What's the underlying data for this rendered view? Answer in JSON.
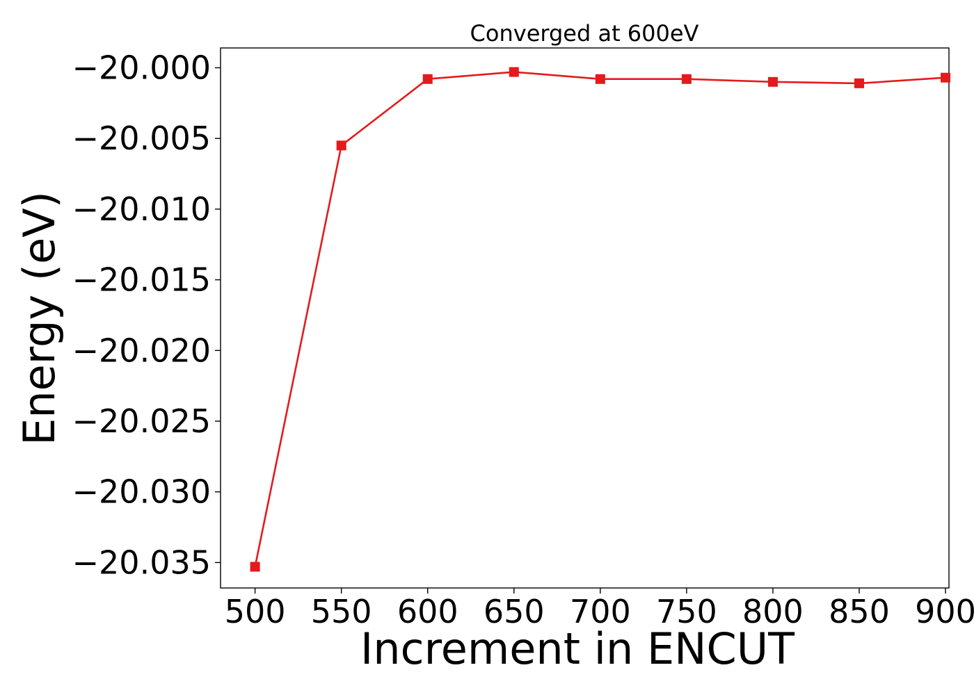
{
  "chart_data": {
    "type": "line",
    "title": "Converged at 600eV",
    "xlabel": "Increment in ENCUT",
    "ylabel": "Energy (eV)",
    "x": [
      500,
      550,
      600,
      650,
      700,
      750,
      800,
      850,
      900
    ],
    "series": [
      {
        "values": [
          -20.0353,
          -20.0055,
          -20.0008,
          -20.0003,
          -20.0008,
          -20.0008,
          -20.001,
          -20.0011,
          -20.0007
        ],
        "color": "#e41a1c",
        "marker": "square"
      }
    ],
    "xticks": [
      "500",
      "550",
      "600",
      "650",
      "700",
      "750",
      "800",
      "850",
      "900"
    ],
    "yticks": [
      "−20.000",
      "−20.005",
      "−20.010",
      "−20.015",
      "−20.020",
      "−20.025",
      "−20.030",
      "−20.035"
    ],
    "ytick_values": [
      -20.0,
      -20.005,
      -20.01,
      -20.015,
      -20.02,
      -20.025,
      -20.03,
      -20.035
    ],
    "xlim": [
      480,
      902
    ],
    "ylim": [
      -20.0368,
      -19.9986
    ],
    "grid": false,
    "legend": "none"
  }
}
